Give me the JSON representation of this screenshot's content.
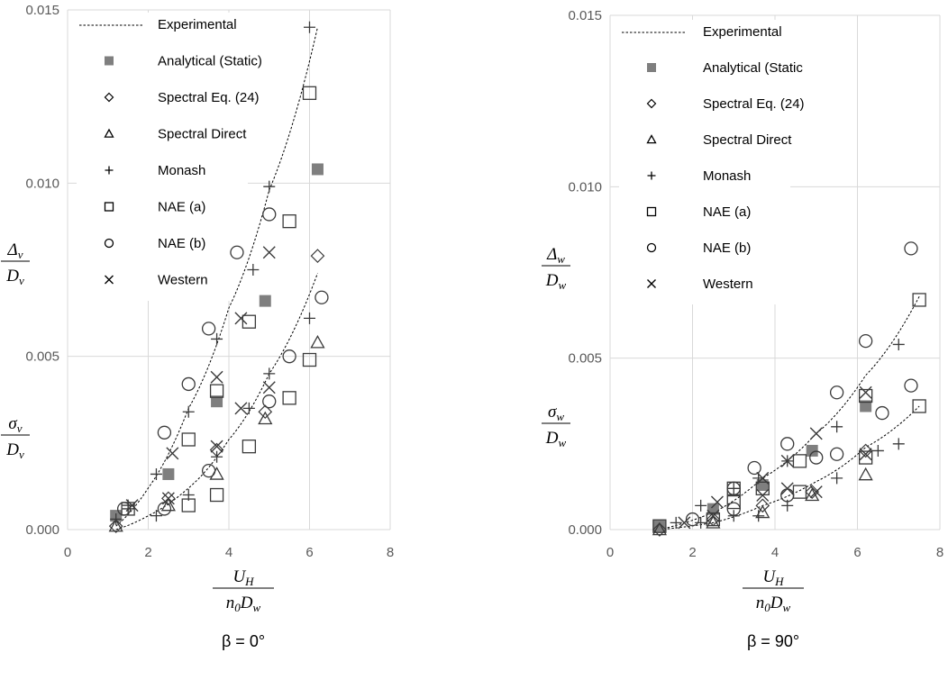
{
  "chart_data": [
    {
      "type": "scatter",
      "title": "",
      "caption": "β = 0°",
      "xlabel": {
        "numerator": "U",
        "numerator_sub": "H",
        "denominator_1": "n",
        "denominator_1_sub": "0",
        "denominator_2": "D",
        "denominator_2_sub": "w"
      },
      "ylabel_top": {
        "numerator": "Δ",
        "numerator_sub": "v",
        "denominator": "D",
        "denominator_sub": "v"
      },
      "ylabel_bottom": {
        "numerator": "σ",
        "numerator_sub": "v",
        "denominator": "D",
        "denominator_sub": "v"
      },
      "xlim": [
        0,
        8
      ],
      "ylim": [
        0,
        0.015
      ],
      "xticks": [
        "0",
        "2",
        "4",
        "6",
        "8"
      ],
      "yticks": [
        "0.000",
        "0.005",
        "0.010",
        "0.015"
      ],
      "grid": true,
      "legend_position": "top-left",
      "legend": [
        "Experimental",
        "Analytical (Static)",
        "Spectral Eq. (24)",
        "Spectral Direct",
        "Monash",
        "NAE (a)",
        "NAE (b)",
        "Western"
      ],
      "legend_markers": [
        "- - - - - - - - - - -",
        "■",
        "◇",
        "△",
        "+",
        "□",
        "○",
        "x"
      ],
      "trend_lines": [
        {
          "name": "Experimental",
          "x": [
            1.2,
            2.0,
            3.0,
            4.0,
            5.0,
            6.2
          ],
          "y": [
            0.0001,
            0.0012,
            0.0035,
            0.0064,
            0.0098,
            0.0145
          ]
        },
        {
          "name": "Experimental",
          "x": [
            1.2,
            2.0,
            3.0,
            4.0,
            5.0,
            6.2
          ],
          "y": [
            0.0,
            0.0004,
            0.0012,
            0.0026,
            0.0045,
            0.0074
          ]
        }
      ],
      "series": [
        {
          "name": "Analytical (Static)",
          "marker": "filled-square",
          "points": [
            [
              1.2,
              0.0004
            ],
            [
              2.5,
              0.0016
            ],
            [
              3.7,
              0.0037
            ],
            [
              4.9,
              0.0066
            ],
            [
              6.2,
              0.0104
            ]
          ]
        },
        {
          "name": "Spectral Eq. (24)",
          "marker": "diamond",
          "points": [
            [
              1.2,
              0.0001
            ],
            [
              2.5,
              0.0009
            ],
            [
              3.7,
              0.0023
            ],
            [
              4.9,
              0.0034
            ],
            [
              6.2,
              0.0079
            ]
          ]
        },
        {
          "name": "Spectral Direct",
          "marker": "triangle",
          "points": [
            [
              1.2,
              0.0001
            ],
            [
              2.5,
              0.0007
            ],
            [
              3.7,
              0.0016
            ],
            [
              4.9,
              0.0032
            ],
            [
              6.2,
              0.0054
            ]
          ]
        },
        {
          "name": "Monash",
          "marker": "plus",
          "points": [
            [
              1.2,
              0.0003
            ],
            [
              1.5,
              0.0007
            ],
            [
              2.2,
              0.0016
            ],
            [
              3.0,
              0.0034
            ],
            [
              3.7,
              0.0055
            ],
            [
              4.6,
              0.0075
            ],
            [
              5.0,
              0.0099
            ],
            [
              6.0,
              0.0145
            ],
            [
              1.5,
              0.0006
            ],
            [
              2.2,
              0.0004
            ],
            [
              3.0,
              0.001
            ],
            [
              3.7,
              0.0021
            ],
            [
              4.5,
              0.0035
            ],
            [
              5.0,
              0.0045
            ],
            [
              6.0,
              0.0061
            ]
          ]
        },
        {
          "name": "NAE (a)",
          "marker": "square",
          "points": [
            [
              1.5,
              0.0006
            ],
            [
              3.0,
              0.0026
            ],
            [
              3.7,
              0.004
            ],
            [
              4.5,
              0.006
            ],
            [
              5.5,
              0.0089
            ],
            [
              6.0,
              0.0126
            ],
            [
              3.0,
              0.0007
            ],
            [
              3.7,
              0.001
            ],
            [
              4.5,
              0.0024
            ],
            [
              5.5,
              0.0038
            ],
            [
              6.0,
              0.0049
            ]
          ]
        },
        {
          "name": "NAE (b)",
          "marker": "circle",
          "points": [
            [
              1.4,
              0.0006
            ],
            [
              2.4,
              0.0028
            ],
            [
              3.0,
              0.0042
            ],
            [
              3.5,
              0.0058
            ],
            [
              4.2,
              0.008
            ],
            [
              5.0,
              0.0091
            ],
            [
              2.4,
              0.0006
            ],
            [
              3.5,
              0.0017
            ],
            [
              5.0,
              0.0037
            ],
            [
              5.5,
              0.005
            ],
            [
              6.3,
              0.0067
            ]
          ]
        },
        {
          "name": "Western",
          "marker": "x",
          "points": [
            [
              1.6,
              0.0007
            ],
            [
              2.6,
              0.0022
            ],
            [
              3.7,
              0.0044
            ],
            [
              4.3,
              0.0061
            ],
            [
              5.0,
              0.008
            ],
            [
              2.5,
              0.0009
            ],
            [
              3.7,
              0.0024
            ],
            [
              4.3,
              0.0035
            ],
            [
              5.0,
              0.0041
            ]
          ]
        }
      ]
    },
    {
      "type": "scatter",
      "title": "",
      "caption": "β = 90°",
      "xlabel": {
        "numerator": "U",
        "numerator_sub": "H",
        "denominator_1": "n",
        "denominator_1_sub": "0",
        "denominator_2": "D",
        "denominator_2_sub": "w"
      },
      "ylabel_top": {
        "numerator": "Δ",
        "numerator_sub": "w",
        "denominator": "D",
        "denominator_sub": "w"
      },
      "ylabel_bottom": {
        "numerator": "σ",
        "numerator_sub": "w",
        "denominator": "D",
        "denominator_sub": "w"
      },
      "xlim": [
        0,
        8
      ],
      "ylim": [
        0,
        0.015
      ],
      "xticks": [
        "0",
        "2",
        "4",
        "6",
        "8"
      ],
      "yticks": [
        "0.000",
        "0.005",
        "0.010",
        "0.015"
      ],
      "grid": true,
      "legend_position": "top-left",
      "legend": [
        "Experimental",
        "Analytical (Static",
        "Spectral Eq. (24)",
        "Spectral Direct",
        "Monash",
        "NAE (a)",
        "NAE (b)",
        "Western"
      ],
      "legend_markers": [
        "- - - - - - - - - - -",
        "■",
        "◇",
        "△",
        "+",
        "□",
        "○",
        "x"
      ],
      "trend_lines": [
        {
          "name": "Experimental",
          "x": [
            1.2,
            2.5,
            3.7,
            5.0,
            6.2,
            7.5
          ],
          "y": [
            0.0,
            0.0005,
            0.0015,
            0.0028,
            0.0045,
            0.0068
          ]
        },
        {
          "name": "Experimental",
          "x": [
            1.2,
            2.5,
            3.7,
            5.0,
            6.2,
            7.5
          ],
          "y": [
            0.0,
            0.0002,
            0.0007,
            0.0014,
            0.0024,
            0.0036
          ]
        }
      ],
      "series": [
        {
          "name": "Analytical (Static",
          "marker": "filled-square",
          "points": [
            [
              1.2,
              0.0001
            ],
            [
              2.5,
              0.0006
            ],
            [
              3.7,
              0.0013
            ],
            [
              4.9,
              0.0023
            ],
            [
              6.2,
              0.0036
            ]
          ]
        },
        {
          "name": "Spectral Eq. (24)",
          "marker": "diamond",
          "points": [
            [
              1.2,
              0.0
            ],
            [
              2.5,
              0.0003
            ],
            [
              3.7,
              0.0007
            ],
            [
              4.9,
              0.0011
            ],
            [
              6.2,
              0.0023
            ]
          ]
        },
        {
          "name": "Spectral Direct",
          "marker": "triangle",
          "points": [
            [
              1.2,
              0.0
            ],
            [
              2.5,
              0.0002
            ],
            [
              3.7,
              0.0005
            ],
            [
              4.9,
              0.001
            ],
            [
              6.2,
              0.0016
            ]
          ]
        },
        {
          "name": "Monash",
          "marker": "plus",
          "points": [
            [
              1.6,
              0.0002
            ],
            [
              2.2,
              0.0007
            ],
            [
              3.0,
              0.0012
            ],
            [
              3.6,
              0.0015
            ],
            [
              4.3,
              0.002
            ],
            [
              5.5,
              0.003
            ],
            [
              7.0,
              0.0054
            ],
            [
              2.2,
              0.0002
            ],
            [
              3.0,
              0.0004
            ],
            [
              3.6,
              0.0004
            ],
            [
              4.3,
              0.0007
            ],
            [
              5.5,
              0.0015
            ],
            [
              6.5,
              0.0023
            ],
            [
              7.0,
              0.0025
            ]
          ]
        },
        {
          "name": "NAE (a)",
          "marker": "square",
          "points": [
            [
              1.2,
              0.0001
            ],
            [
              2.5,
              0.0003
            ],
            [
              3.0,
              0.0012
            ],
            [
              3.7,
              0.0012
            ],
            [
              4.6,
              0.002
            ],
            [
              6.2,
              0.0039
            ],
            [
              7.5,
              0.0067
            ],
            [
              3.0,
              0.0008
            ],
            [
              4.6,
              0.0011
            ],
            [
              6.2,
              0.0021
            ],
            [
              7.5,
              0.0036
            ]
          ]
        },
        {
          "name": "NAE (b)",
          "marker": "circle",
          "points": [
            [
              2.0,
              0.0003
            ],
            [
              3.0,
              0.0012
            ],
            [
              3.5,
              0.0018
            ],
            [
              4.3,
              0.0025
            ],
            [
              5.5,
              0.004
            ],
            [
              6.2,
              0.0055
            ],
            [
              7.3,
              0.0082
            ],
            [
              3.0,
              0.0006
            ],
            [
              4.3,
              0.001
            ],
            [
              5.0,
              0.0021
            ],
            [
              5.5,
              0.0022
            ],
            [
              6.6,
              0.0034
            ],
            [
              7.3,
              0.0042
            ]
          ]
        },
        {
          "name": "Western",
          "marker": "x",
          "points": [
            [
              1.8,
              0.0002
            ],
            [
              2.6,
              0.0008
            ],
            [
              3.7,
              0.0015
            ],
            [
              4.3,
              0.002
            ],
            [
              5.0,
              0.0028
            ],
            [
              6.2,
              0.004
            ],
            [
              2.5,
              0.0004
            ],
            [
              3.7,
              0.001
            ],
            [
              4.3,
              0.0012
            ],
            [
              5.0,
              0.0011
            ],
            [
              6.2,
              0.0022
            ]
          ]
        }
      ]
    }
  ]
}
